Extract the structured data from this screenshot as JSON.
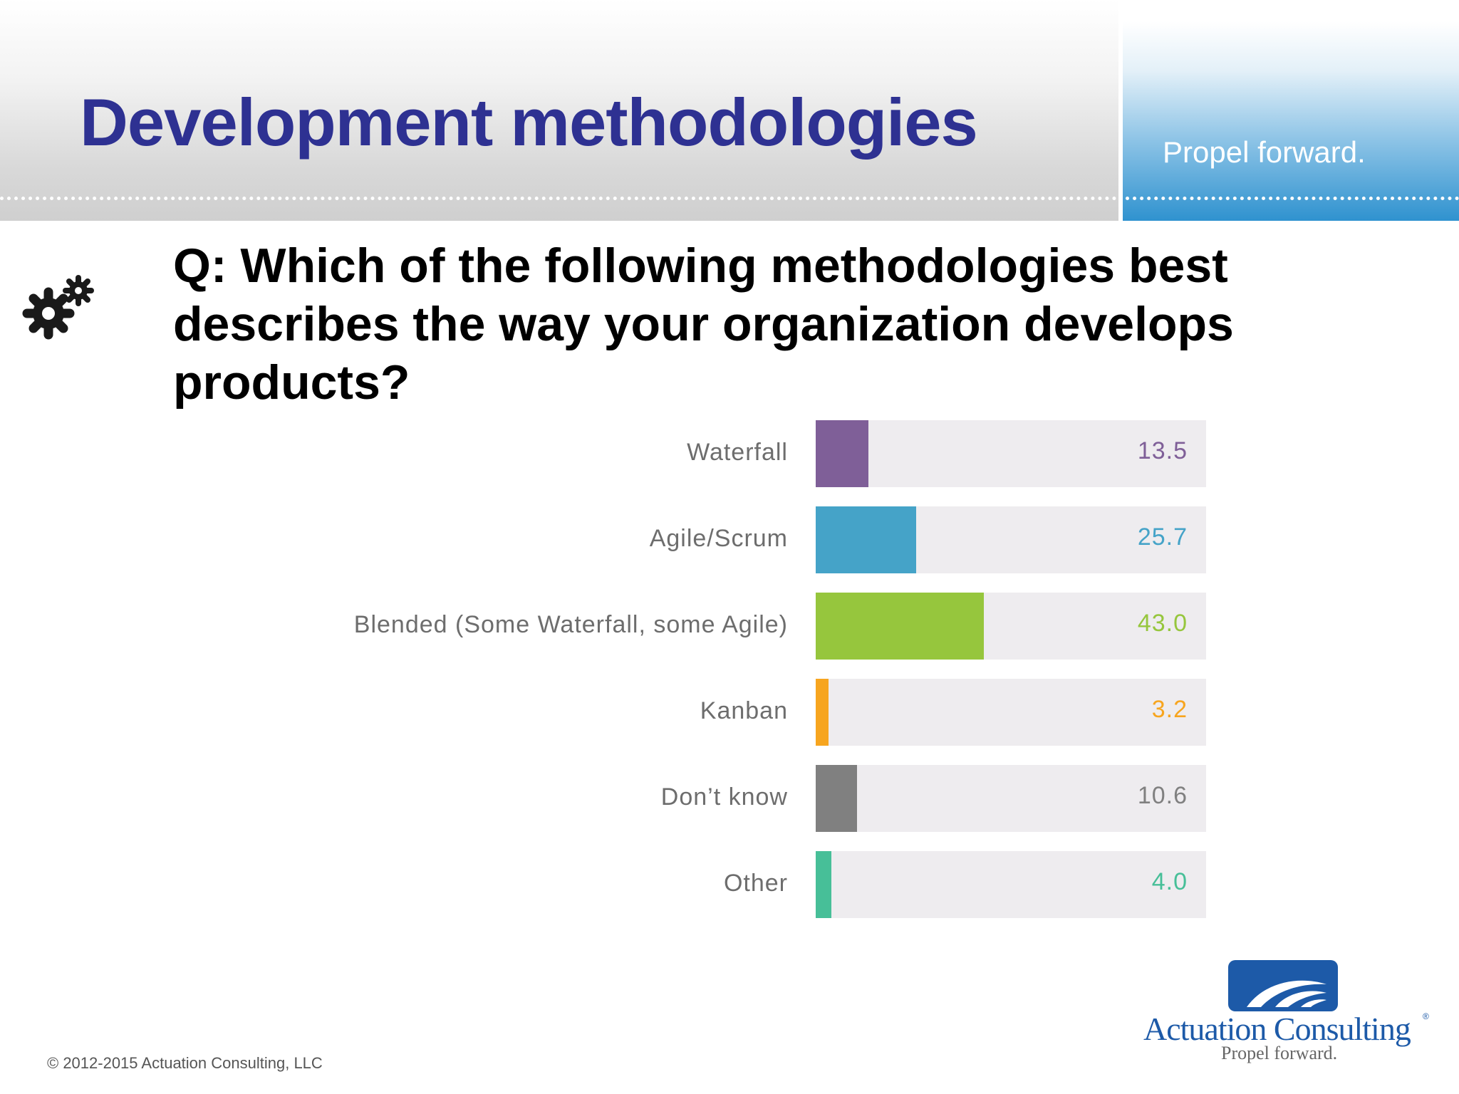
{
  "header": {
    "title": "Development methodologies",
    "tagline": "Propel forward."
  },
  "question": "Q: Which of the following methodologies best describes the way your organization develops products?",
  "chart_data": {
    "type": "bar",
    "orientation": "horizontal",
    "categories": [
      "Waterfall",
      "Agile/Scrum",
      "Blended (Some Waterfall, some Agile)",
      "Kanban",
      "Don’t know",
      "Other"
    ],
    "values": [
      13.5,
      25.7,
      43.0,
      3.2,
      10.6,
      4.0
    ],
    "value_labels": [
      "13.5",
      "25.7",
      "43.0",
      "3.2",
      "10.6",
      "4.0"
    ],
    "colors": [
      "#7f5f98",
      "#45a3c8",
      "#96c63d",
      "#f7a51f",
      "#808080",
      "#47bf98"
    ],
    "xlim": [
      0,
      100
    ],
    "grid": false,
    "legend": "none",
    "title": "",
    "xlabel": "",
    "ylabel": ""
  },
  "logo": {
    "name": "Actuation Consulting",
    "registered": "®",
    "tagline": "Propel forward."
  },
  "footer": {
    "copyright": "© 2012-2015 Actuation Consulting, LLC"
  },
  "icons": {
    "gear": "gears-icon",
    "logo_mark": "wave-logo-icon"
  }
}
